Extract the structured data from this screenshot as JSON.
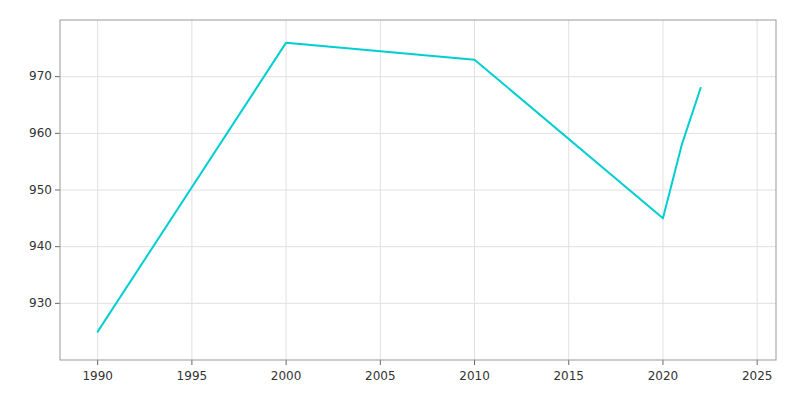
{
  "chart_data": {
    "type": "line",
    "x": [
      1990,
      2000,
      2010,
      2020,
      2021,
      2022
    ],
    "values": [
      925,
      976,
      973,
      945,
      958,
      968
    ],
    "color": "#00CED1",
    "xlim": [
      1988,
      2026
    ],
    "ylim": [
      920,
      980
    ],
    "xticks": [
      1990,
      1995,
      2000,
      2005,
      2010,
      2015,
      2020,
      2025
    ],
    "yticks": [
      930,
      940,
      950,
      960,
      970
    ],
    "grid": true
  }
}
